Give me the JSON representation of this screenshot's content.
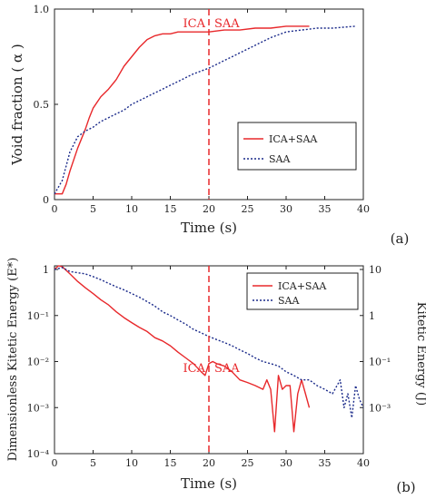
{
  "chart_data": [
    {
      "panel_label": "(a)",
      "type": "line",
      "xlabel": "Time (s)",
      "ylabel": "Void fraction ( α )",
      "xlim": [
        0,
        40
      ],
      "ylim": [
        0,
        1
      ],
      "xticks": [
        0,
        5,
        10,
        15,
        20,
        25,
        30,
        35,
        40
      ],
      "yticks": [
        {
          "v": 0,
          "label": "0"
        },
        {
          "v": 0.5,
          "label": "0.5"
        },
        {
          "v": 1.0,
          "label": "1.0"
        }
      ],
      "legend_position": "center-right",
      "vline": {
        "x": 20,
        "left_label": "ICA",
        "right_label": "SAA"
      },
      "series": [
        {
          "name": "ICA+SAA",
          "color": "#e8282b",
          "dash": "solid",
          "points": [
            [
              0,
              0.03
            ],
            [
              1,
              0.03
            ],
            [
              1.5,
              0.08
            ],
            [
              2,
              0.15
            ],
            [
              3,
              0.27
            ],
            [
              4,
              0.37
            ],
            [
              4.5,
              0.43
            ],
            [
              5,
              0.48
            ],
            [
              6,
              0.54
            ],
            [
              7,
              0.58
            ],
            [
              8,
              0.63
            ],
            [
              9,
              0.7
            ],
            [
              10,
              0.75
            ],
            [
              11,
              0.8
            ],
            [
              12,
              0.84
            ],
            [
              13,
              0.86
            ],
            [
              14,
              0.87
            ],
            [
              15,
              0.87
            ],
            [
              16,
              0.88
            ],
            [
              18,
              0.88
            ],
            [
              20,
              0.88
            ],
            [
              22,
              0.89
            ],
            [
              24,
              0.89
            ],
            [
              26,
              0.9
            ],
            [
              28,
              0.9
            ],
            [
              30,
              0.91
            ],
            [
              33,
              0.91
            ]
          ]
        },
        {
          "name": "SAA",
          "color": "#1a2a8a",
          "dash": "dotted",
          "points": [
            [
              0,
              0.03
            ],
            [
              1,
              0.1
            ],
            [
              2,
              0.25
            ],
            [
              3,
              0.33
            ],
            [
              4,
              0.36
            ],
            [
              5,
              0.38
            ],
            [
              6,
              0.41
            ],
            [
              7,
              0.43
            ],
            [
              8,
              0.45
            ],
            [
              9,
              0.47
            ],
            [
              10,
              0.5
            ],
            [
              12,
              0.54
            ],
            [
              14,
              0.58
            ],
            [
              16,
              0.62
            ],
            [
              18,
              0.66
            ],
            [
              20,
              0.69
            ],
            [
              22,
              0.73
            ],
            [
              24,
              0.77
            ],
            [
              26,
              0.81
            ],
            [
              28,
              0.85
            ],
            [
              30,
              0.88
            ],
            [
              32,
              0.89
            ],
            [
              34,
              0.9
            ],
            [
              36,
              0.9
            ],
            [
              39,
              0.91
            ]
          ]
        }
      ]
    },
    {
      "panel_label": "(b)",
      "type": "line",
      "xlabel": "Time (s)",
      "ylabel": "Dimensionless Kitetic Energy (E*)",
      "y2label": "Kitetic Energy (J)",
      "xlim": [
        0,
        40
      ],
      "ylim": [
        0.0001,
        1.2
      ],
      "yscale": "log",
      "xticks": [
        0,
        5,
        10,
        15,
        20,
        25,
        30,
        35,
        40
      ],
      "yticks": [
        {
          "v": 1,
          "label": "1"
        },
        {
          "v": 0.1,
          "label": "10⁻¹"
        },
        {
          "v": 0.01,
          "label": "10⁻²"
        },
        {
          "v": 0.001,
          "label": "10⁻³"
        },
        {
          "v": 0.0001,
          "label": "10⁻⁴"
        }
      ],
      "y2ticks": [
        {
          "v": 1,
          "label": "10"
        },
        {
          "v": 0.1,
          "label": "1"
        },
        {
          "v": 0.01,
          "label": "10⁻¹"
        },
        {
          "v": 0.001,
          "label": "10⁻³"
        }
      ],
      "legend_position": "top-right",
      "vline": {
        "x": 20,
        "left_label": "ICA",
        "right_label": "SAA"
      },
      "series": [
        {
          "name": "ICA+SAA",
          "color": "#e8282b",
          "dash": "solid",
          "points": [
            [
              0,
              1.0
            ],
            [
              0.5,
              1.2
            ],
            [
              1,
              1.15
            ],
            [
              2,
              0.8
            ],
            [
              3,
              0.55
            ],
            [
              4,
              0.4
            ],
            [
              5,
              0.3
            ],
            [
              6,
              0.22
            ],
            [
              7,
              0.17
            ],
            [
              8,
              0.12
            ],
            [
              9,
              0.09
            ],
            [
              10,
              0.07
            ],
            [
              11,
              0.055
            ],
            [
              12,
              0.045
            ],
            [
              13,
              0.033
            ],
            [
              14,
              0.028
            ],
            [
              15,
              0.022
            ],
            [
              16,
              0.016
            ],
            [
              17,
              0.012
            ],
            [
              18,
              0.009
            ],
            [
              19,
              0.006
            ],
            [
              19.5,
              0.005
            ],
            [
              20,
              0.009
            ],
            [
              20.5,
              0.01
            ],
            [
              21,
              0.009
            ],
            [
              22,
              0.008
            ],
            [
              23,
              0.006
            ],
            [
              24,
              0.004
            ],
            [
              25,
              0.0035
            ],
            [
              26,
              0.003
            ],
            [
              27,
              0.0025
            ],
            [
              27.5,
              0.004
            ],
            [
              28,
              0.0025
            ],
            [
              28.5,
              0.0003
            ],
            [
              29,
              0.005
            ],
            [
              29.5,
              0.0025
            ],
            [
              30,
              0.003
            ],
            [
              30.5,
              0.003
            ],
            [
              31,
              0.0003
            ],
            [
              31.5,
              0.002
            ],
            [
              32,
              0.004
            ],
            [
              32.5,
              0.002
            ],
            [
              33,
              0.001
            ]
          ]
        },
        {
          "name": "SAA",
          "color": "#1a2a8a",
          "dash": "dotted",
          "points": [
            [
              0,
              1.0
            ],
            [
              1,
              1.1
            ],
            [
              2,
              0.9
            ],
            [
              3,
              0.85
            ],
            [
              4,
              0.8
            ],
            [
              5,
              0.7
            ],
            [
              6,
              0.6
            ],
            [
              7,
              0.5
            ],
            [
              8,
              0.42
            ],
            [
              9,
              0.36
            ],
            [
              10,
              0.3
            ],
            [
              11,
              0.25
            ],
            [
              12,
              0.2
            ],
            [
              13,
              0.16
            ],
            [
              14,
              0.12
            ],
            [
              15,
              0.1
            ],
            [
              16,
              0.08
            ],
            [
              17,
              0.065
            ],
            [
              18,
              0.05
            ],
            [
              19,
              0.042
            ],
            [
              20,
              0.035
            ],
            [
              21,
              0.03
            ],
            [
              22,
              0.026
            ],
            [
              23,
              0.022
            ],
            [
              24,
              0.018
            ],
            [
              25,
              0.015
            ],
            [
              26,
              0.012
            ],
            [
              27,
              0.01
            ],
            [
              28,
              0.009
            ],
            [
              29,
              0.008
            ],
            [
              30,
              0.006
            ],
            [
              31,
              0.005
            ],
            [
              32,
              0.004
            ],
            [
              33,
              0.004
            ],
            [
              34,
              0.003
            ],
            [
              35,
              0.0025
            ],
            [
              36,
              0.002
            ],
            [
              37,
              0.004
            ],
            [
              37.5,
              0.001
            ],
            [
              38,
              0.002
            ],
            [
              38.5,
              0.0006
            ],
            [
              39,
              0.003
            ],
            [
              39.5,
              0.0015
            ],
            [
              40,
              0.001
            ]
          ]
        }
      ]
    }
  ]
}
